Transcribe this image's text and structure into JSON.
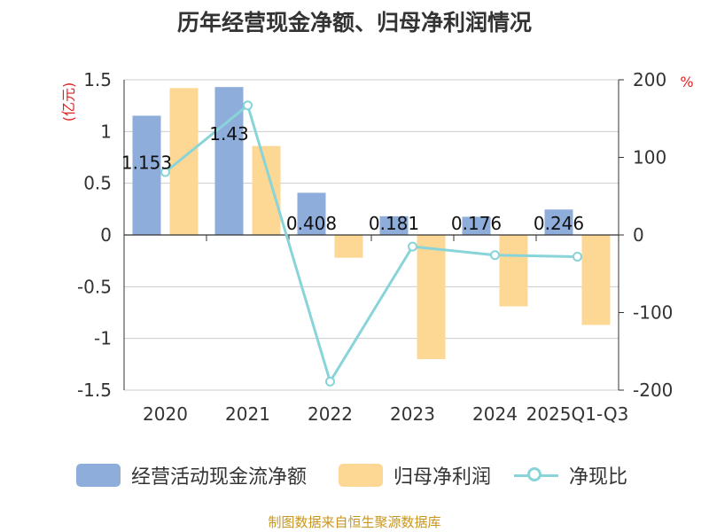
{
  "chart_data": {
    "type": "bar+line",
    "title": "历年经营现金净额、归母净利润情况",
    "categories": [
      "2020",
      "2021",
      "2022",
      "2023",
      "2024",
      "2025Q1-Q3"
    ],
    "left_axis": {
      "unit": "(亿元)",
      "ylim": [
        -1.5,
        1.5
      ],
      "ticks": [
        "1.5",
        "1",
        "0.5",
        "0",
        "-0.5",
        "-1",
        "-1.5"
      ]
    },
    "right_axis": {
      "unit": "%",
      "ylim": [
        -200,
        200
      ],
      "ticks": [
        "200",
        "100",
        "0",
        "-100",
        "-200"
      ]
    },
    "series": [
      {
        "name": "经营活动现金流净额",
        "type": "bar",
        "axis": "left",
        "color": "#8eaddb",
        "values": [
          1.153,
          1.43,
          0.408,
          0.181,
          0.176,
          0.246
        ],
        "labels": [
          "1.153",
          "1.43",
          "0.408",
          "0.181",
          "0.176",
          "0.246"
        ]
      },
      {
        "name": "归母净利润",
        "type": "bar",
        "axis": "left",
        "color": "#fdd794",
        "values": [
          1.42,
          0.86,
          -0.22,
          -1.2,
          -0.69,
          -0.87
        ]
      },
      {
        "name": "净现比",
        "type": "line",
        "axis": "right",
        "color": "#88d4d8",
        "values": [
          81,
          167,
          -189,
          -15,
          -26,
          -28
        ]
      }
    ],
    "source": "制图数据来自恒生聚源数据库"
  }
}
